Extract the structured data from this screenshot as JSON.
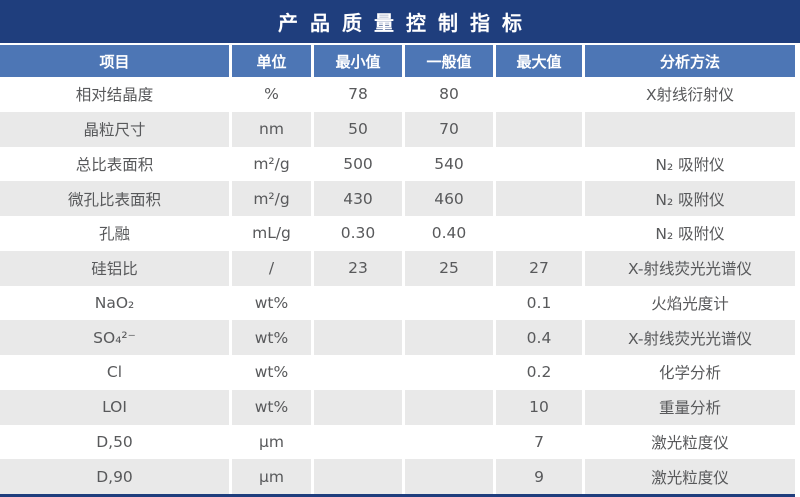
{
  "title": "产品质量控制指标",
  "colors": {
    "navy": "#1f3e7d",
    "header_blue": "#4d76b5",
    "row_alt": "#e9e9e9",
    "body_text": "#58595b",
    "divider": "#ffffff"
  },
  "table": {
    "headers": [
      "项目",
      "单位",
      "最小值",
      "一般值",
      "最大值",
      "分析方法"
    ],
    "rows": [
      {
        "item": "相对结晶度",
        "unit": "%",
        "min": "78",
        "typical": "80",
        "max": "",
        "method": "X射线衍射仪"
      },
      {
        "item": "晶粒尺寸",
        "unit": "nm",
        "min": "50",
        "typical": "70",
        "max": "",
        "method": ""
      },
      {
        "item": "总比表面积",
        "unit": "m²/g",
        "min": "500",
        "typical": "540",
        "max": "",
        "method": "N₂ 吸附仪"
      },
      {
        "item": "微孔比表面积",
        "unit": "m²/g",
        "min": "430",
        "typical": "460",
        "max": "",
        "method": "N₂ 吸附仪"
      },
      {
        "item": "孔融",
        "unit": "mL/g",
        "min": "0.30",
        "typical": "0.40",
        "max": "",
        "method": "N₂ 吸附仪"
      },
      {
        "item": "硅铝比",
        "unit": "/",
        "min": "23",
        "typical": "25",
        "max": "27",
        "method": "X-射线荧光光谱仪"
      },
      {
        "item": "NaO₂",
        "unit": "wt%",
        "min": "",
        "typical": "",
        "max": "0.1",
        "method": "火焰光度计"
      },
      {
        "item": "SO₄²⁻",
        "unit": "wt%",
        "min": "",
        "typical": "",
        "max": "0.4",
        "method": "X-射线荧光光谱仪"
      },
      {
        "item": "Cl",
        "unit": "wt%",
        "min": "",
        "typical": "",
        "max": "0.2",
        "method": "化学分析"
      },
      {
        "item": "LOI",
        "unit": "wt%",
        "min": "",
        "typical": "",
        "max": "10",
        "method": "重量分析"
      },
      {
        "item": "D,50",
        "unit": "μm",
        "min": "",
        "typical": "",
        "max": "7",
        "method": "激光粒度仪"
      },
      {
        "item": "D,90",
        "unit": "μm",
        "min": "",
        "typical": "",
        "max": "9",
        "method": "激光粒度仪"
      }
    ]
  }
}
